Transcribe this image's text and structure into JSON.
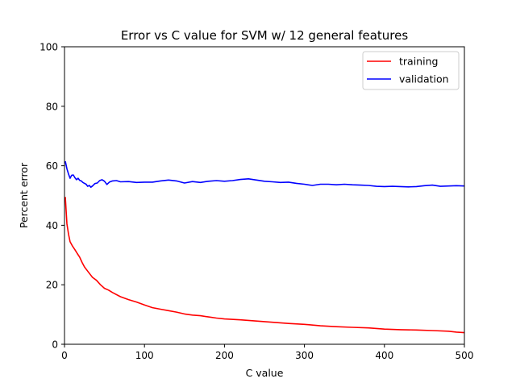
{
  "chart_data": {
    "type": "line",
    "title": "Error vs C value for SVM w/ 12 general features",
    "xlabel": "C value",
    "ylabel": "Percent error",
    "xlim": [
      0,
      500
    ],
    "ylim": [
      0,
      100
    ],
    "xticks": [
      0,
      100,
      200,
      300,
      400,
      500
    ],
    "yticks": [
      0,
      20,
      40,
      60,
      80,
      100
    ],
    "grid": false,
    "legend_position": "top-right",
    "series": [
      {
        "name": "training",
        "color": "#ff0000",
        "points": [
          [
            1,
            49.5
          ],
          [
            2,
            45
          ],
          [
            3,
            40.5
          ],
          [
            5,
            37
          ],
          [
            7,
            34.5
          ],
          [
            10,
            33
          ],
          [
            13,
            31.8
          ],
          [
            16,
            30.5
          ],
          [
            19,
            29.3
          ],
          [
            22,
            27.5
          ],
          [
            25,
            26
          ],
          [
            30,
            24.2
          ],
          [
            35,
            22.5
          ],
          [
            40,
            21.5
          ],
          [
            45,
            20
          ],
          [
            50,
            18.8
          ],
          [
            55,
            18.2
          ],
          [
            60,
            17.4
          ],
          [
            70,
            16
          ],
          [
            80,
            15
          ],
          [
            90,
            14.2
          ],
          [
            100,
            13.2
          ],
          [
            110,
            12.3
          ],
          [
            120,
            11.8
          ],
          [
            130,
            11.3
          ],
          [
            140,
            10.8
          ],
          [
            150,
            10.2
          ],
          [
            160,
            9.8
          ],
          [
            170,
            9.6
          ],
          [
            180,
            9.2
          ],
          [
            190,
            8.8
          ],
          [
            200,
            8.5
          ],
          [
            220,
            8.2
          ],
          [
            240,
            7.8
          ],
          [
            260,
            7.4
          ],
          [
            280,
            7
          ],
          [
            300,
            6.7
          ],
          [
            320,
            6.2
          ],
          [
            340,
            5.9
          ],
          [
            360,
            5.7
          ],
          [
            380,
            5.5
          ],
          [
            400,
            5.1
          ],
          [
            420,
            4.9
          ],
          [
            440,
            4.8
          ],
          [
            460,
            4.6
          ],
          [
            480,
            4.4
          ],
          [
            490,
            4.1
          ],
          [
            500,
            3.9
          ]
        ]
      },
      {
        "name": "validation",
        "color": "#0000ff",
        "points": [
          [
            1,
            61.5
          ],
          [
            3,
            59
          ],
          [
            5,
            57.2
          ],
          [
            7,
            55.8
          ],
          [
            9,
            56.8
          ],
          [
            11,
            56.9
          ],
          [
            13,
            56
          ],
          [
            15,
            55.3
          ],
          [
            17,
            55.8
          ],
          [
            19,
            55.1
          ],
          [
            21,
            54.9
          ],
          [
            23,
            54.4
          ],
          [
            25,
            54.1
          ],
          [
            27,
            53.8
          ],
          [
            29,
            53.1
          ],
          [
            31,
            53.4
          ],
          [
            33,
            52.8
          ],
          [
            35,
            53.2
          ],
          [
            38,
            54
          ],
          [
            41,
            54.2
          ],
          [
            44,
            55
          ],
          [
            47,
            55.3
          ],
          [
            50,
            54.8
          ],
          [
            53,
            53.7
          ],
          [
            56,
            54.5
          ],
          [
            60,
            54.9
          ],
          [
            65,
            55
          ],
          [
            70,
            54.6
          ],
          [
            80,
            54.7
          ],
          [
            90,
            54.4
          ],
          [
            100,
            54.5
          ],
          [
            110,
            54.5
          ],
          [
            120,
            54.9
          ],
          [
            130,
            55.2
          ],
          [
            140,
            54.9
          ],
          [
            150,
            54.2
          ],
          [
            160,
            54.7
          ],
          [
            170,
            54.4
          ],
          [
            180,
            54.8
          ],
          [
            190,
            55
          ],
          [
            200,
            54.8
          ],
          [
            210,
            55
          ],
          [
            220,
            55.4
          ],
          [
            230,
            55.6
          ],
          [
            240,
            55.2
          ],
          [
            250,
            54.8
          ],
          [
            260,
            54.6
          ],
          [
            270,
            54.4
          ],
          [
            280,
            54.5
          ],
          [
            290,
            54.1
          ],
          [
            300,
            53.8
          ],
          [
            310,
            53.4
          ],
          [
            320,
            53.8
          ],
          [
            330,
            53.8
          ],
          [
            340,
            53.6
          ],
          [
            350,
            53.8
          ],
          [
            360,
            53.6
          ],
          [
            370,
            53.5
          ],
          [
            380,
            53.4
          ],
          [
            390,
            53.1
          ],
          [
            400,
            53
          ],
          [
            410,
            53.1
          ],
          [
            420,
            53
          ],
          [
            430,
            52.9
          ],
          [
            440,
            53
          ],
          [
            450,
            53.3
          ],
          [
            460,
            53.5
          ],
          [
            470,
            53.1
          ],
          [
            480,
            53.2
          ],
          [
            490,
            53.3
          ],
          [
            500,
            53.2
          ]
        ]
      }
    ]
  }
}
